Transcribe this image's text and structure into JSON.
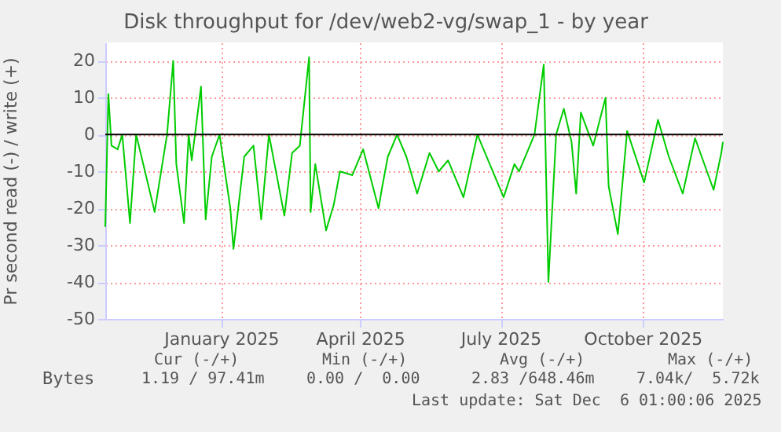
{
  "chart_data": {
    "type": "line",
    "title": "Disk throughput for /dev/web2-vg/swap_1 - by year",
    "ylabel": "Pr second read (-) / write (+)",
    "x": [
      "2024-11-01",
      "2024-11-03",
      "2024-11-05",
      "2024-11-09",
      "2024-11-12",
      "2024-11-17",
      "2024-11-21",
      "2024-12-03",
      "2024-12-06",
      "2024-12-11",
      "2024-12-15",
      "2024-12-17",
      "2024-12-22",
      "2024-12-25",
      "2024-12-27",
      "2025-01-02",
      "2025-01-05",
      "2025-01-09",
      "2025-01-14",
      "2025-01-21",
      "2025-01-23",
      "2025-01-25",
      "2025-01-30",
      "2025-02-05",
      "2025-02-10",
      "2025-02-15",
      "2025-02-25",
      "2025-03-02",
      "2025-03-07",
      "2025-03-13",
      "2025-03-14",
      "2025-03-17",
      "2025-03-24",
      "2025-03-29",
      "2025-04-02",
      "2025-04-10",
      "2025-04-17",
      "2025-04-27",
      "2025-04-29",
      "2025-05-03",
      "2025-05-09",
      "2025-05-15",
      "2025-05-22",
      "2025-05-30",
      "2025-06-05",
      "2025-06-11",
      "2025-06-21",
      "2025-06-30",
      "2025-07-17",
      "2025-07-24",
      "2025-07-27",
      "2025-08-06",
      "2025-08-12",
      "2025-08-15",
      "2025-08-20",
      "2025-08-25",
      "2025-08-30",
      "2025-09-02",
      "2025-09-05",
      "2025-09-13",
      "2025-09-21",
      "2025-09-23",
      "2025-09-29",
      "2025-10-05",
      "2025-10-16",
      "2025-10-25",
      "2025-11-01",
      "2025-11-10",
      "2025-11-18",
      "2025-11-30",
      "2025-12-05",
      "2025-12-06"
    ],
    "series": [
      {
        "name": "Bytes",
        "color": "#00cc00",
        "values": [
          -25,
          11,
          -3,
          -4,
          0,
          -24,
          0,
          -21,
          -13,
          0,
          20,
          -8,
          -24,
          0,
          -7,
          13,
          -23,
          -6,
          0,
          -20,
          -31,
          -24,
          -6,
          -3,
          -23,
          0,
          -22,
          -5,
          -3,
          21,
          -21,
          -8,
          -26,
          -19,
          -10,
          -11,
          -4,
          -20,
          -15,
          -6,
          0,
          -6,
          -16,
          -5,
          -10,
          -7,
          -17,
          0,
          -17,
          -8,
          -10,
          0,
          19,
          -40,
          0,
          7,
          -2,
          -16,
          6,
          -3,
          10,
          -14,
          -27,
          1,
          -13,
          4,
          -6,
          -16,
          -1,
          -15,
          -5,
          -2
        ]
      }
    ],
    "xlim": [
      "2024-11-01",
      "2025-12-06"
    ],
    "xticks": [
      {
        "value": "2025-01-15",
        "label": "January 2025"
      },
      {
        "value": "2025-04-15",
        "label": "April 2025"
      },
      {
        "value": "2025-07-15",
        "label": "July 2025"
      },
      {
        "value": "2025-10-15",
        "label": "October 2025"
      }
    ],
    "ylim": [
      -50,
      25
    ],
    "yticks": [
      -50,
      -40,
      -30,
      -20,
      -10,
      0,
      10,
      20
    ],
    "ref_lines": [
      {
        "axis": "y",
        "value": 0,
        "color": "#000000"
      }
    ],
    "grid": true,
    "legend": "bottom left",
    "line_style": "solid",
    "marker": "none",
    "annotations": [
      "Cur (-/+)",
      "Min (-/+)",
      "Avg (-/+)",
      "Max (-/+)",
      "1.19 / 97.41m",
      "0.00 /  0.00",
      "2.83 /648.46m",
      "7.04k/  5.72k",
      "Last update: Sat Dec  6 01:00:06 2025"
    ]
  }
}
